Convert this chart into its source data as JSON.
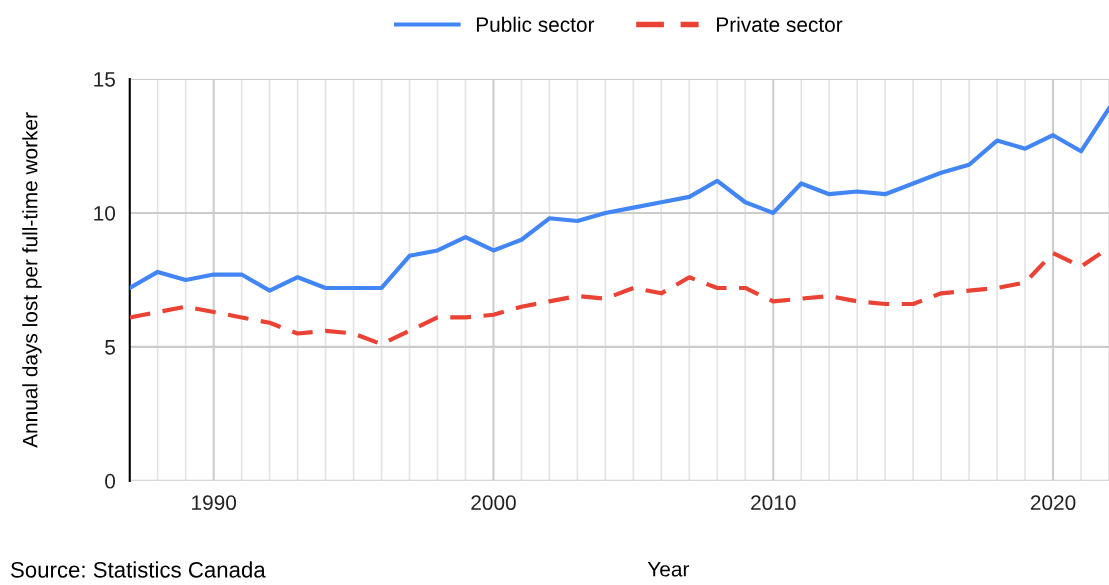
{
  "chart_data": {
    "type": "line",
    "xlabel": "Year",
    "ylabel": "Annual days lost per full-time worker",
    "annotations": [
      "Source: Statistics Canada"
    ],
    "x": [
      1987,
      1988,
      1989,
      1990,
      1991,
      1992,
      1993,
      1994,
      1995,
      1996,
      1997,
      1998,
      1999,
      2000,
      2001,
      2002,
      2003,
      2004,
      2005,
      2006,
      2007,
      2008,
      2009,
      2010,
      2011,
      2012,
      2013,
      2014,
      2015,
      2016,
      2017,
      2018,
      2019,
      2020,
      2021,
      2022
    ],
    "series": [
      {
        "name": "Public sector",
        "color": "#4285f4",
        "line_style": "solid",
        "values": [
          7.2,
          7.8,
          7.5,
          7.7,
          7.7,
          7.1,
          7.6,
          7.2,
          7.2,
          7.2,
          8.4,
          8.6,
          9.1,
          8.6,
          9.0,
          9.8,
          9.7,
          10.0,
          10.2,
          10.4,
          10.6,
          11.2,
          10.4,
          10.0,
          11.1,
          10.7,
          10.8,
          10.7,
          11.1,
          11.5,
          11.8,
          12.7,
          12.4,
          12.9,
          12.3,
          13.9
        ]
      },
      {
        "name": "Private sector",
        "color": "#ea4335",
        "line_style": "dashed",
        "values": [
          6.1,
          6.3,
          6.5,
          6.3,
          6.1,
          5.9,
          5.5,
          5.6,
          5.5,
          5.1,
          5.6,
          6.1,
          6.1,
          6.2,
          6.5,
          6.7,
          6.9,
          6.8,
          7.2,
          7.0,
          7.6,
          7.2,
          7.2,
          6.7,
          6.8,
          6.9,
          6.7,
          6.6,
          6.6,
          7.0,
          7.1,
          7.2,
          7.4,
          8.5,
          8.0,
          8.7
        ]
      }
    ],
    "xlim": [
      1987,
      2022
    ],
    "xticks": [
      {
        "value": 1987,
        "label": null
      },
      {
        "value": 1988,
        "label": null
      },
      {
        "value": 1989,
        "label": null
      },
      1990,
      {
        "value": 1991,
        "label": null
      },
      {
        "value": 1992,
        "label": null
      },
      {
        "value": 1993,
        "label": null
      },
      {
        "value": 1994,
        "label": null
      },
      {
        "value": 1995,
        "label": null
      },
      {
        "value": 1996,
        "label": null
      },
      {
        "value": 1997,
        "label": null
      },
      {
        "value": 1998,
        "label": null
      },
      {
        "value": 1999,
        "label": null
      },
      2000,
      {
        "value": 2001,
        "label": null
      },
      {
        "value": 2002,
        "label": null
      },
      {
        "value": 2003,
        "label": null
      },
      {
        "value": 2004,
        "label": null
      },
      {
        "value": 2005,
        "label": null
      },
      {
        "value": 2006,
        "label": null
      },
      {
        "value": 2007,
        "label": null
      },
      {
        "value": 2008,
        "label": null
      },
      {
        "value": 2009,
        "label": null
      },
      2010,
      {
        "value": 2011,
        "label": null
      },
      {
        "value": 2012,
        "label": null
      },
      {
        "value": 2013,
        "label": null
      },
      {
        "value": 2014,
        "label": null
      },
      {
        "value": 2015,
        "label": null
      },
      {
        "value": 2016,
        "label": null
      },
      {
        "value": 2017,
        "label": null
      },
      {
        "value": 2018,
        "label": null
      },
      {
        "value": 2019,
        "label": null
      },
      2020,
      {
        "value": 2021,
        "label": null
      },
      {
        "value": 2022,
        "label": null
      }
    ],
    "ylim": [
      0,
      15
    ],
    "yticks": [
      0,
      5,
      10,
      15
    ],
    "grid": true,
    "legend": "top",
    "marker": "none"
  }
}
